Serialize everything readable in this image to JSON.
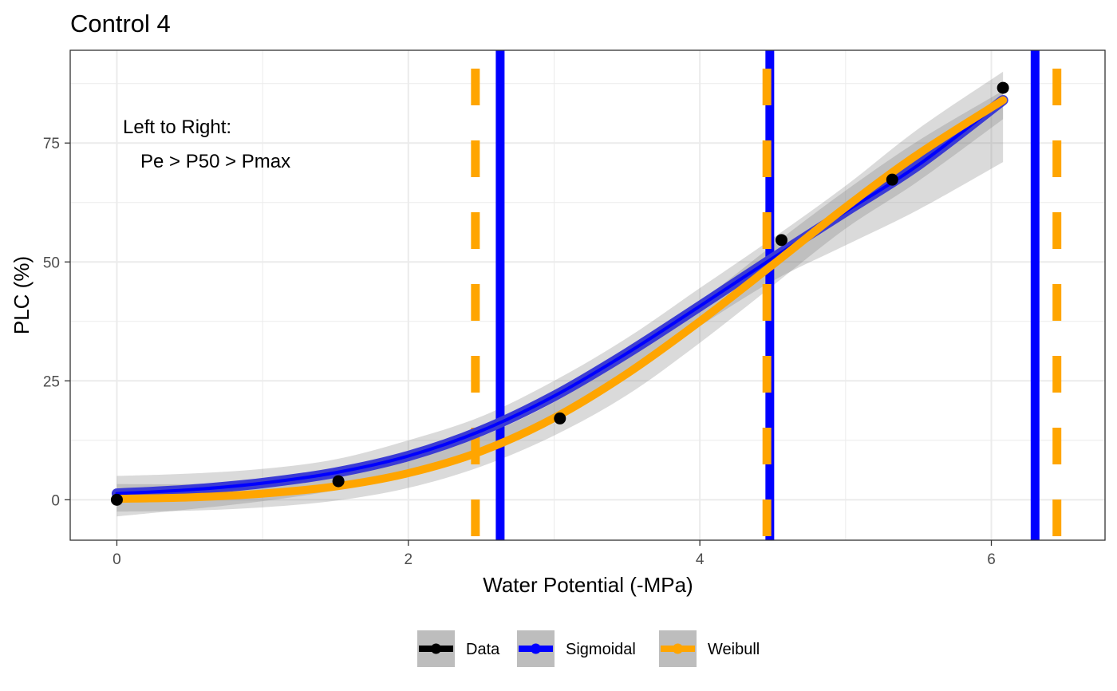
{
  "chart_data": {
    "type": "line",
    "title": "Control 4",
    "xlabel": "Water Potential (-MPa)",
    "ylabel": "PLC (%)",
    "xlim": [
      -0.32,
      6.78
    ],
    "ylim": [
      -8.5,
      94.5
    ],
    "xticks": [
      0,
      2,
      4,
      6
    ],
    "yticks": [
      0,
      25,
      50,
      75
    ],
    "grid": true,
    "legend_position": "bottom",
    "annotation": [
      "Left to Right:",
      "Pe > P50 > Pmax"
    ],
    "data_points": {
      "name": "Data",
      "color": "#000000",
      "x": [
        0,
        1.52,
        3.04,
        4.56,
        5.32,
        6.08
      ],
      "y": [
        0,
        3.9,
        17.1,
        54.6,
        67.3,
        86.6
      ]
    },
    "series": [
      {
        "name": "Sigmoidal",
        "color": "#0000ff",
        "x": [
          0,
          0.5,
          1.0,
          1.5,
          2.0,
          2.5,
          3.0,
          3.5,
          4.0,
          4.5,
          5.0,
          5.5,
          6.08
        ],
        "y": [
          1.3,
          2.1,
          3.5,
          5.7,
          9.2,
          14.5,
          21.8,
          30.8,
          40.7,
          50.8,
          60.6,
          70.4,
          84.0
        ],
        "ci_lower": [
          -3.5,
          -2.0,
          -0.3,
          2.0,
          5.5,
          10.5,
          17.5,
          26.5,
          36.5,
          46.0,
          53.5,
          61.0,
          71.0
        ],
        "ci_upper": [
          5.0,
          5.5,
          6.5,
          8.5,
          12.5,
          17.5,
          25.0,
          34.0,
          44.5,
          55.0,
          66.0,
          78.0,
          90.0
        ],
        "vlines": [
          2.63,
          4.48,
          6.3
        ]
      },
      {
        "name": "Weibull",
        "color": "#ffa500",
        "x": [
          0,
          0.5,
          1.0,
          1.5,
          2.0,
          2.5,
          3.0,
          3.5,
          4.0,
          4.5,
          5.0,
          5.5,
          6.08
        ],
        "y": [
          0.2,
          0.5,
          1.3,
          2.8,
          5.6,
          10.2,
          17.2,
          26.5,
          37.5,
          49.4,
          61.5,
          72.7,
          84.0
        ],
        "ci_lower": [
          -2.5,
          -2.3,
          -1.6,
          -0.2,
          2.5,
          7.0,
          13.5,
          22.0,
          33.0,
          45.0,
          57.0,
          67.0,
          80.0
        ],
        "ci_upper": [
          3.3,
          3.3,
          3.8,
          5.4,
          8.6,
          13.3,
          20.5,
          30.0,
          41.5,
          53.5,
          65.0,
          75.5,
          86.0
        ],
        "vlines": [
          2.46,
          4.46,
          6.45
        ]
      }
    ]
  }
}
